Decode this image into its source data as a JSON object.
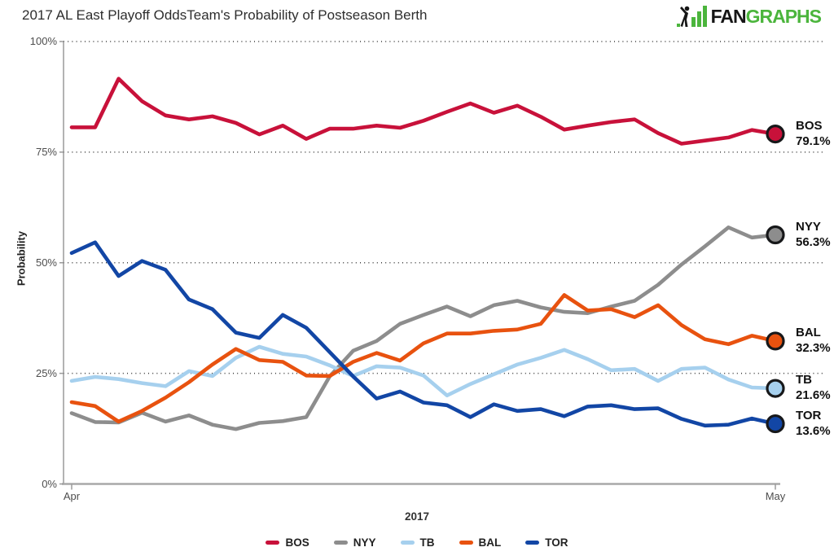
{
  "header": {
    "title": "2017 AL East Playoff Odds",
    "subtitle": "Team's Probability of Postseason Berth",
    "logo": {
      "fan": "FAN",
      "graphs": "GRAPHS",
      "green": "#4bb53c",
      "dark": "#161616"
    }
  },
  "chart_data": {
    "type": "line",
    "title": "2017 AL East Playoff Odds — Team's Probability of Postseason Berth",
    "xlabel": "2017",
    "ylabel": "Probability",
    "x_ticks": [
      "Apr",
      "May"
    ],
    "y_ticks": [
      "0%",
      "25%",
      "50%",
      "75%",
      "100%"
    ],
    "ylim": [
      0,
      100
    ],
    "grid": "horizontal dotted lines at 25%, 50%, 75%, 100%",
    "legend_position": "bottom-center",
    "x_description": "Daily values from Apr 1 to May 1, 2017",
    "series": [
      {
        "name": "BOS",
        "color": "#c8113a",
        "final_label": "79.1%",
        "values": [
          80.6,
          80.6,
          91.6,
          86.5,
          83.3,
          82.4,
          83.1,
          81.6,
          79.0,
          81.0,
          78.0,
          80.3,
          80.3,
          81.0,
          80.5,
          82.1,
          84.1,
          86.0,
          83.9,
          85.5,
          83.0,
          80.1,
          81.0,
          81.8,
          82.4,
          79.3,
          76.9,
          77.6,
          78.3,
          80.0,
          79.1
        ]
      },
      {
        "name": "NYY",
        "color": "#8d8d8d",
        "final_label": "56.3%",
        "values": [
          16.0,
          14.0,
          13.9,
          16.1,
          14.1,
          15.5,
          13.4,
          12.4,
          13.8,
          14.2,
          15.1,
          24.3,
          30.1,
          32.3,
          36.2,
          38.2,
          40.1,
          37.9,
          40.4,
          41.4,
          39.9,
          38.9,
          38.6,
          40.1,
          41.4,
          45.0,
          49.6,
          53.7,
          58.0,
          55.7,
          56.3
        ]
      },
      {
        "name": "TB",
        "color": "#a6d0ee",
        "final_label": "21.6%",
        "values": [
          23.3,
          24.2,
          23.7,
          22.8,
          22.1,
          25.5,
          24.4,
          28.5,
          31.0,
          29.4,
          28.8,
          26.8,
          24.4,
          26.6,
          26.3,
          24.5,
          20.0,
          22.6,
          24.8,
          27.0,
          28.5,
          30.3,
          28.2,
          25.7,
          26.0,
          23.3,
          26.0,
          26.3,
          23.6,
          21.8,
          21.6
        ]
      },
      {
        "name": "BAL",
        "color": "#e8520f",
        "final_label": "32.3%",
        "values": [
          18.5,
          17.6,
          14.1,
          16.5,
          19.5,
          23.0,
          27.0,
          30.5,
          28.0,
          27.6,
          24.5,
          24.4,
          27.6,
          29.6,
          27.9,
          31.8,
          34.0,
          34.0,
          34.6,
          34.9,
          36.2,
          42.7,
          39.2,
          39.5,
          37.7,
          40.4,
          35.9,
          32.7,
          31.6,
          33.5,
          32.3
        ]
      },
      {
        "name": "TOR",
        "color": "#1246a5",
        "final_label": "13.6%",
        "values": [
          52.2,
          54.6,
          47.0,
          50.4,
          48.4,
          41.7,
          39.5,
          34.2,
          33.0,
          38.2,
          35.3,
          29.8,
          24.3,
          19.3,
          20.9,
          18.4,
          17.8,
          15.1,
          18.0,
          16.5,
          16.9,
          15.3,
          17.5,
          17.8,
          16.9,
          17.1,
          14.7,
          13.2,
          13.4,
          14.8,
          13.6
        ]
      }
    ],
    "legend": [
      "BOS",
      "NYY",
      "TB",
      "BAL",
      "TOR"
    ]
  }
}
